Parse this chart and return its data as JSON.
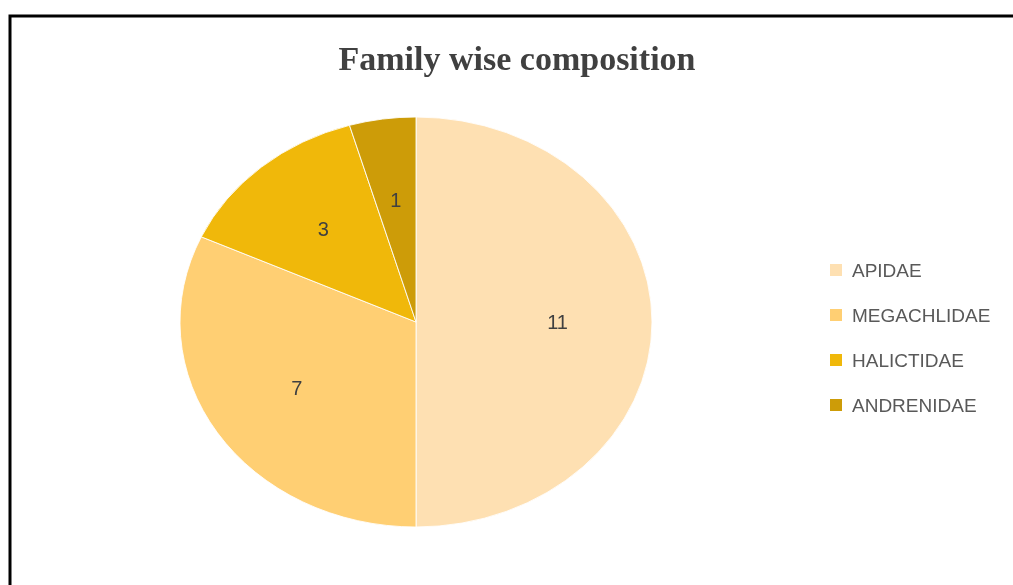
{
  "chart_data": {
    "type": "pie",
    "title": "Family wise composition",
    "categories": [
      "APIDAE",
      "MEGACHLIDAE",
      "HALICTIDAE",
      "ANDRENIDAE"
    ],
    "values": [
      11,
      7,
      3,
      1
    ],
    "colors": [
      "#fee0b2",
      "#ffcf73",
      "#f0b80a",
      "#cd9c08"
    ],
    "data_labels": true,
    "legend": "right"
  }
}
